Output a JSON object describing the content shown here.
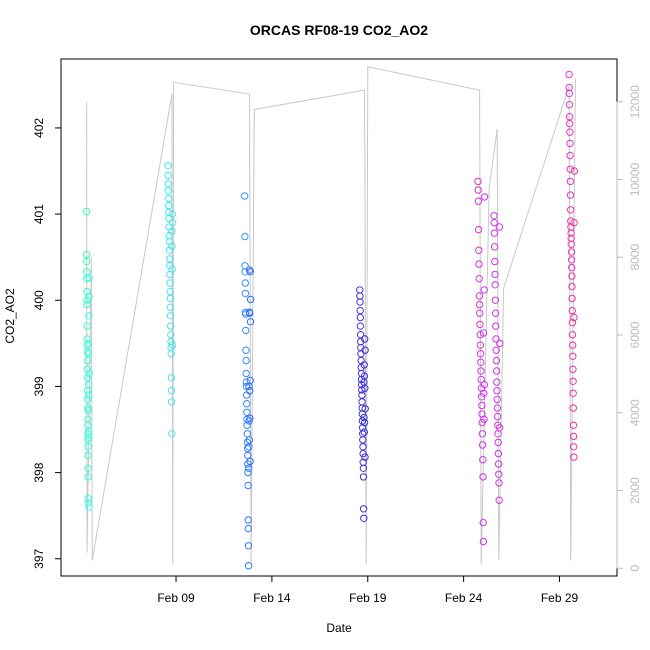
{
  "chart_data": {
    "type": "scatter",
    "title": "ORCAS RF08-19 CO2_AO2",
    "xlabel": "Date",
    "ylabel": "CO2_AO2",
    "x_unit": "date",
    "xlim": [
      "2016-02-03",
      "2016-03-03"
    ],
    "ylim": [
      396.8,
      402.8
    ],
    "y_ticks": [
      397,
      398,
      399,
      400,
      401,
      402
    ],
    "x_ticks": [
      {
        "date": "2016-02-09",
        "label": "Feb 09"
      },
      {
        "date": "2016-02-14",
        "label": "Feb 14"
      },
      {
        "date": "2016-02-19",
        "label": "Feb 19"
      },
      {
        "date": "2016-02-24",
        "label": "Feb 24"
      },
      {
        "date": "2016-02-29",
        "label": "Feb 29"
      }
    ],
    "secondary_axis": {
      "ylim": [
        -200,
        13100
      ],
      "ticks": [
        0,
        2000,
        4000,
        6000,
        8000,
        10000,
        12000
      ],
      "color": "#bbbbbb",
      "line_color": "#c8c8c8",
      "line": [
        [
          "2016-02-04 08:00",
          12000
        ],
        [
          "2016-02-04 08:30",
          400
        ],
        [
          "2016-02-04 14:00",
          8000
        ],
        [
          "2016-02-04 15:00",
          200
        ],
        [
          "2016-02-08 19:00",
          12200
        ],
        [
          "2016-02-08 20:00",
          100
        ],
        [
          "2016-02-08 21:00",
          12500
        ],
        [
          "2016-02-12 20:00",
          12200
        ],
        [
          "2016-02-12 22:00",
          100
        ],
        [
          "2016-02-13 02:00",
          11800
        ],
        [
          "2016-02-18 20:00",
          12300
        ],
        [
          "2016-02-18 22:00",
          100
        ],
        [
          "2016-02-19 00:00",
          12900
        ],
        [
          "2016-02-24 20:00",
          12300
        ],
        [
          "2016-02-24 22:00",
          100
        ],
        [
          "2016-02-25 08:00",
          9800
        ],
        [
          "2016-02-25 18:00",
          11300
        ],
        [
          "2016-02-25 20:00",
          200
        ],
        [
          "2016-02-26 02:00",
          7200
        ],
        [
          "2016-02-29 12:00",
          12400
        ],
        [
          "2016-02-29 14:00",
          200
        ],
        [
          "2016-02-29 20:00",
          12600
        ]
      ]
    },
    "series": [
      {
        "color": "#33ffbb",
        "color_end": "#33ffee",
        "x": [
          "2016-02-04 08:00",
          "2016-02-04 08:05",
          "2016-02-04 08:10",
          "2016-02-04 08:15",
          "2016-02-04 08:20",
          "2016-02-04 08:25",
          "2016-02-04 08:30",
          "2016-02-04 08:35",
          "2016-02-04 08:40",
          "2016-02-04 08:45",
          "2016-02-04 08:50",
          "2016-02-04 08:55",
          "2016-02-04 09:00",
          "2016-02-04 09:05",
          "2016-02-04 09:10",
          "2016-02-04 09:15",
          "2016-02-04 09:20",
          "2016-02-04 09:25",
          "2016-02-04 09:30",
          "2016-02-04 09:35",
          "2016-02-04 09:40",
          "2016-02-04 09:45",
          "2016-02-04 09:50",
          "2016-02-04 09:55",
          "2016-02-04 10:00",
          "2016-02-04 10:05",
          "2016-02-04 10:10",
          "2016-02-04 10:15",
          "2016-02-04 10:20",
          "2016-02-04 10:25",
          "2016-02-04 10:30",
          "2016-02-04 10:35",
          "2016-02-04 10:40",
          "2016-02-04 10:45",
          "2016-02-04 10:50",
          "2016-02-04 10:55",
          "2016-02-04 11:00",
          "2016-02-04 11:05",
          "2016-02-04 11:10",
          "2016-02-04 11:15"
        ],
        "y": [
          401.03,
          400.53,
          400.45,
          400.33,
          400.25,
          400.1,
          400.0,
          399.95,
          399.7,
          399.55,
          399.48,
          399.4,
          399.3,
          399.2,
          399.1,
          398.95,
          398.85,
          398.75,
          398.62,
          398.55,
          398.45,
          398.38,
          398.3,
          398.2,
          398.05,
          397.95,
          397.7,
          397.65,
          398.72,
          399.38,
          399.5,
          398.9,
          399.02,
          398.48,
          398.41,
          399.82,
          400.26,
          400.04,
          397.6,
          399.15
        ]
      },
      {
        "color": "#33eeee",
        "color_end": "#55ddee",
        "x": [
          "2016-02-08 14:00",
          "2016-02-08 14:10",
          "2016-02-08 14:20",
          "2016-02-08 14:30",
          "2016-02-08 14:40",
          "2016-02-08 14:50",
          "2016-02-08 15:00",
          "2016-02-08 15:10",
          "2016-02-08 15:20",
          "2016-02-08 15:30",
          "2016-02-08 15:40",
          "2016-02-08 15:50",
          "2016-02-08 16:00",
          "2016-02-08 16:10",
          "2016-02-08 16:20",
          "2016-02-08 16:30",
          "2016-02-08 16:40",
          "2016-02-08 16:50",
          "2016-02-08 17:00",
          "2016-02-08 17:10",
          "2016-02-08 17:20",
          "2016-02-08 17:30",
          "2016-02-08 17:40",
          "2016-02-08 17:50",
          "2016-02-08 18:00",
          "2016-02-08 18:10",
          "2016-02-08 18:20",
          "2016-02-08 18:30",
          "2016-02-08 18:40",
          "2016-02-08 18:50",
          "2016-02-08 19:00",
          "2016-02-08 19:10",
          "2016-02-08 19:20",
          "2016-02-08 19:30",
          "2016-02-08 19:40"
        ],
        "y": [
          401.56,
          401.45,
          401.35,
          401.27,
          401.18,
          401.1,
          401.02,
          400.95,
          400.85,
          400.75,
          400.68,
          400.58,
          400.48,
          400.4,
          400.3,
          400.2,
          400.1,
          400.02,
          399.92,
          399.82,
          399.7,
          399.6,
          399.52,
          399.45,
          399.38,
          399.1,
          398.95,
          398.82,
          398.45,
          400.8,
          400.63,
          400.36,
          399.48,
          401.0,
          400.9
        ]
      },
      {
        "color": "#3399ff",
        "color_end": "#3366ff",
        "x": [
          "2016-02-12 14:00",
          "2016-02-12 14:10",
          "2016-02-12 14:20",
          "2016-02-12 14:30",
          "2016-02-12 14:40",
          "2016-02-12 14:50",
          "2016-02-12 15:00",
          "2016-02-12 15:10",
          "2016-02-12 15:20",
          "2016-02-12 15:30",
          "2016-02-12 15:40",
          "2016-02-12 15:50",
          "2016-02-12 16:00",
          "2016-02-12 16:10",
          "2016-02-12 16:20",
          "2016-02-12 16:30",
          "2016-02-12 16:40",
          "2016-02-12 16:50",
          "2016-02-12 17:00",
          "2016-02-12 17:10",
          "2016-02-12 17:20",
          "2016-02-12 17:30",
          "2016-02-12 17:40",
          "2016-02-12 17:50",
          "2016-02-12 18:00",
          "2016-02-12 18:10",
          "2016-02-12 18:20",
          "2016-02-12 18:30",
          "2016-02-12 18:40",
          "2016-02-12 18:50",
          "2016-02-12 19:00",
          "2016-02-12 19:10",
          "2016-02-12 19:20",
          "2016-02-12 19:30",
          "2016-02-12 19:40",
          "2016-02-12 19:50",
          "2016-02-12 20:00",
          "2016-02-12 20:10",
          "2016-02-12 20:20",
          "2016-02-12 20:30",
          "2016-02-12 20:40",
          "2016-02-12 20:50",
          "2016-02-12 21:00",
          "2016-02-12 21:10",
          "2016-02-12 21:20"
        ],
        "y": [
          401.21,
          400.74,
          400.4,
          400.33,
          400.2,
          400.08,
          399.86,
          399.84,
          399.65,
          399.42,
          399.3,
          399.15,
          399.05,
          399.0,
          398.9,
          398.8,
          398.7,
          398.62,
          398.55,
          398.45,
          398.35,
          398.28,
          398.2,
          398.1,
          398.0,
          397.85,
          397.45,
          397.35,
          397.15,
          396.92,
          398.05,
          398.3,
          399.0,
          398.6,
          398.38,
          399.86,
          400.35,
          399.85,
          398.95,
          398.63,
          398.13,
          399.07,
          400.33,
          399.75,
          400.01
        ]
      },
      {
        "color": "#5533ee",
        "color_end": "#3333cc",
        "x": [
          "2016-02-18 14:00",
          "2016-02-18 14:10",
          "2016-02-18 14:20",
          "2016-02-18 14:30",
          "2016-02-18 14:40",
          "2016-02-18 14:50",
          "2016-02-18 15:00",
          "2016-02-18 15:10",
          "2016-02-18 15:20",
          "2016-02-18 15:30",
          "2016-02-18 15:40",
          "2016-02-18 15:50",
          "2016-02-18 16:00",
          "2016-02-18 16:10",
          "2016-02-18 16:20",
          "2016-02-18 16:30",
          "2016-02-18 16:40",
          "2016-02-18 16:50",
          "2016-02-18 17:00",
          "2016-02-18 17:10",
          "2016-02-18 17:20",
          "2016-02-18 17:30",
          "2016-02-18 17:40",
          "2016-02-18 17:50",
          "2016-02-18 18:00",
          "2016-02-18 18:10",
          "2016-02-18 18:20",
          "2016-02-18 18:30",
          "2016-02-18 18:40",
          "2016-02-18 18:50",
          "2016-02-18 19:00",
          "2016-02-18 19:10",
          "2016-02-18 19:20",
          "2016-02-18 19:30",
          "2016-02-18 19:40",
          "2016-02-18 19:50",
          "2016-02-18 20:00",
          "2016-02-18 20:10",
          "2016-02-18 20:20",
          "2016-02-18 20:30",
          "2016-02-18 20:40",
          "2016-02-18 20:50"
        ],
        "y": [
          400.12,
          400.05,
          399.98,
          399.88,
          399.8,
          399.7,
          399.6,
          399.52,
          399.45,
          399.38,
          399.3,
          399.22,
          399.15,
          399.08,
          399.02,
          398.96,
          398.9,
          398.82,
          398.75,
          398.68,
          398.6,
          398.52,
          398.45,
          398.38,
          398.3,
          398.22,
          398.12,
          398.05,
          397.95,
          397.58,
          397.47,
          399.05,
          398.64,
          399.25,
          398.47,
          399.12,
          398.58,
          399.55,
          398.98,
          398.18,
          399.42,
          398.74
        ]
      },
      {
        "color": "#dd33cc",
        "color_end": "#cc33ff",
        "x": [
          "2016-02-24 18:00",
          "2016-02-24 18:15",
          "2016-02-24 18:30",
          "2016-02-24 18:45",
          "2016-02-24 19:00",
          "2016-02-24 19:15",
          "2016-02-24 19:30",
          "2016-02-24 19:45",
          "2016-02-24 20:00",
          "2016-02-24 20:15",
          "2016-02-24 20:30",
          "2016-02-24 20:45",
          "2016-02-24 21:00",
          "2016-02-24 21:15",
          "2016-02-24 21:30",
          "2016-02-24 21:45",
          "2016-02-24 22:00",
          "2016-02-24 22:15",
          "2016-02-24 22:30",
          "2016-02-24 22:45",
          "2016-02-24 23:00",
          "2016-02-24 23:15",
          "2016-02-24 23:30",
          "2016-02-24 23:45",
          "2016-02-25 00:00",
          "2016-02-25 00:15",
          "2016-02-25 00:30",
          "2016-02-25 00:45",
          "2016-02-25 01:00",
          "2016-02-25 01:15",
          "2016-02-25 01:30",
          "2016-02-25 01:45",
          "2016-02-25 02:00",
          "2016-02-25 02:15"
        ],
        "y": [
          401.38,
          401.28,
          401.15,
          400.82,
          400.58,
          400.42,
          400.25,
          400.05,
          399.95,
          399.85,
          399.72,
          399.6,
          399.48,
          399.38,
          399.28,
          399.18,
          399.08,
          398.98,
          398.88,
          398.78,
          398.68,
          398.58,
          398.45,
          398.32,
          398.15,
          397.95,
          397.42,
          397.2,
          399.62,
          398.92,
          398.62,
          400.12,
          399.02,
          401.2
        ]
      },
      {
        "color": "#cc33ee",
        "color_end": "#dd33dd",
        "x": [
          "2016-02-25 14:00",
          "2016-02-25 14:15",
          "2016-02-25 14:30",
          "2016-02-25 14:45",
          "2016-02-25 15:00",
          "2016-02-25 15:15",
          "2016-02-25 15:30",
          "2016-02-25 15:45",
          "2016-02-25 16:00",
          "2016-02-25 16:15",
          "2016-02-25 16:30",
          "2016-02-25 16:45",
          "2016-02-25 17:00",
          "2016-02-25 17:15",
          "2016-02-25 17:30",
          "2016-02-25 17:45",
          "2016-02-25 18:00",
          "2016-02-25 18:15",
          "2016-02-25 18:30",
          "2016-02-25 18:45",
          "2016-02-25 19:00",
          "2016-02-25 19:15",
          "2016-02-25 19:30",
          "2016-02-25 19:45",
          "2016-02-25 20:00",
          "2016-02-25 20:15",
          "2016-02-25 20:30",
          "2016-02-25 20:45",
          "2016-02-25 21:00",
          "2016-02-25 21:15"
        ],
        "y": [
          400.98,
          400.9,
          400.78,
          400.62,
          400.45,
          400.3,
          400.18,
          400.0,
          399.85,
          399.7,
          399.55,
          399.42,
          399.3,
          399.18,
          399.05,
          398.95,
          398.85,
          398.75,
          398.65,
          398.55,
          398.45,
          398.35,
          398.22,
          398.1,
          397.98,
          397.88,
          397.68,
          400.85,
          398.52,
          399.5
        ]
      },
      {
        "color": "#ee33cc",
        "color_end": "#ee3399",
        "x": [
          "2016-02-29 12:00",
          "2016-02-29 12:10",
          "2016-02-29 12:20",
          "2016-02-29 12:30",
          "2016-02-29 12:40",
          "2016-02-29 12:50",
          "2016-02-29 13:00",
          "2016-02-29 13:10",
          "2016-02-29 13:20",
          "2016-02-29 13:30",
          "2016-02-29 13:40",
          "2016-02-29 13:50",
          "2016-02-29 14:00",
          "2016-02-29 14:10",
          "2016-02-29 14:20",
          "2016-02-29 14:30",
          "2016-02-29 14:40",
          "2016-02-29 14:50",
          "2016-02-29 15:00",
          "2016-02-29 15:10",
          "2016-02-29 15:20",
          "2016-02-29 15:30",
          "2016-02-29 15:40",
          "2016-02-29 15:50",
          "2016-02-29 16:00",
          "2016-02-29 16:10",
          "2016-02-29 16:20",
          "2016-02-29 16:30",
          "2016-02-29 16:40",
          "2016-02-29 16:50",
          "2016-02-29 17:00",
          "2016-02-29 17:10",
          "2016-02-29 17:20",
          "2016-02-29 17:30",
          "2016-02-29 17:40",
          "2016-02-29 17:50",
          "2016-02-29 18:00",
          "2016-02-29 18:10",
          "2016-02-29 18:20",
          "2016-02-29 18:30"
        ],
        "y": [
          402.62,
          402.47,
          402.4,
          402.27,
          402.13,
          402.05,
          401.95,
          401.82,
          401.68,
          401.52,
          401.38,
          401.22,
          401.05,
          400.92,
          400.85,
          400.78,
          400.72,
          400.65,
          400.56,
          400.47,
          400.38,
          400.28,
          400.16,
          400.02,
          399.88,
          399.74,
          399.6,
          399.48,
          399.35,
          399.2,
          399.06,
          398.92,
          398.75,
          398.55,
          398.42,
          398.3,
          398.18,
          399.8,
          400.9,
          401.5
        ]
      }
    ]
  }
}
